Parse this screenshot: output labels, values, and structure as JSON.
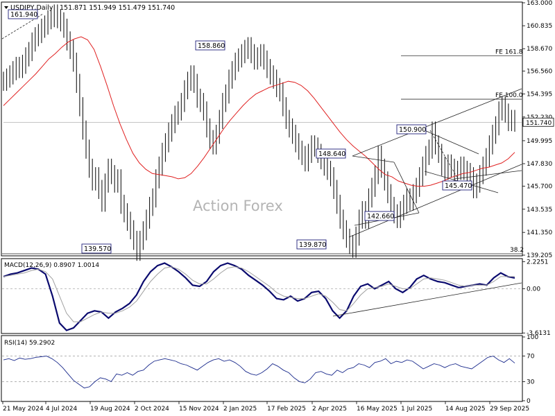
{
  "header": {
    "symbol": "USDJPY,Daily",
    "ohlc": "151.871 151.949 151.479 151.740"
  },
  "watermark": "Action Forex",
  "macd_title": "MACD(12,26,9) 0.8907 1.0014",
  "rsi_title": "RSI(14) 59.2902",
  "colors": {
    "price": "#1a1a1a",
    "ma": "#e02020",
    "macd": "#0a0a6e",
    "signal": "#a0a0a0",
    "label_border": "#1e1e7a",
    "rsi": "#1a2a8c"
  },
  "chart_data": [
    {
      "type": "line",
      "subtype": "price-bars",
      "ylim": [
        139.205,
        163.0
      ],
      "y_ticks": [
        "163.000",
        "160.835",
        "158.670",
        "156.560",
        "154.395",
        "152.230",
        "149.995",
        "147.830",
        "145.700",
        "143.535",
        "141.350",
        "139.205"
      ],
      "current_price": "151.740",
      "x_tick_labels": [
        "21 May 2024",
        "4 Jul 2024",
        "19 Aug 2024",
        "2 Oct 2024",
        "15 Nov 2024",
        "2 Jan 2025",
        "17 Feb 2025",
        "2 Apr 2025",
        "16 May 2025",
        "1 Jul 2025",
        "14 Aug 2025",
        "29 Sep 2025"
      ],
      "series": [
        {
          "role": "price",
          "values": [
            155.6,
            155.9,
            156.2,
            156.6,
            157.0,
            156.8,
            157.2,
            157.9,
            158.4,
            159.3,
            159.8,
            160.1,
            160.6,
            160.9,
            161.4,
            161.6,
            161.94,
            161.5,
            161.2,
            160.6,
            159.4,
            158.6,
            157.4,
            155.4,
            153.2,
            151.0,
            149.2,
            147.4,
            146.2,
            146.6,
            145.4,
            144.2,
            146.0,
            147.4,
            146.8,
            146.0,
            146.4,
            144.0,
            143.2,
            142.4,
            141.6,
            140.6,
            139.57,
            140.6,
            141.5,
            142.6,
            143.8,
            144.6,
            146.4,
            147.6,
            148.9,
            149.8,
            150.8,
            151.6,
            152.4,
            152.8,
            153.6,
            154.8,
            155.6,
            156.2,
            155.4,
            154.0,
            153.6,
            152.8,
            151.2,
            150.1,
            149.6,
            150.6,
            152.0,
            153.6,
            154.4,
            155.8,
            156.6,
            157.4,
            157.8,
            158.2,
            158.6,
            158.86,
            158.2,
            157.6,
            157.9,
            158.2,
            157.6,
            156.8,
            156.2,
            155.8,
            155.0,
            154.6,
            153.2,
            152.0,
            151.2,
            150.6,
            149.8,
            149.1,
            148.6,
            148.0,
            148.8,
            149.6,
            149.4,
            148.8,
            148.2,
            147.6,
            147.2,
            146.6,
            145.4,
            144.0,
            142.6,
            141.6,
            140.8,
            140.2,
            139.87,
            141.0,
            142.6,
            143.4,
            142.6,
            144.6,
            145.6,
            146.8,
            148.64,
            147.4,
            146.2,
            145.0,
            143.8,
            143.1,
            142.66,
            143.4,
            144.0,
            144.6,
            144.3,
            145.0,
            145.6,
            146.6,
            147.6,
            148.6,
            149.2,
            150.9,
            149.6,
            148.8,
            147.6,
            147.2,
            147.8,
            147.4,
            146.6,
            147.2,
            147.6,
            147.2,
            147.0,
            146.6,
            145.47,
            146.0,
            146.8,
            147.6,
            148.4,
            149.6,
            150.6,
            151.4,
            152.8,
            153.3,
            152.6,
            151.8,
            152.0,
            151.74
          ]
        },
        {
          "role": "moving-average",
          "values": [
            153.3,
            153.9,
            154.5,
            155.1,
            155.7,
            156.3,
            157.0,
            157.7,
            158.2,
            158.8,
            159.3,
            159.6,
            159.8,
            159.5,
            158.6,
            157.0,
            155.2,
            153.3,
            151.6,
            150.1,
            148.8,
            147.9,
            147.3,
            146.9,
            146.8,
            146.7,
            146.6,
            146.4,
            146.5,
            146.9,
            147.6,
            148.4,
            149.3,
            150.2,
            151.1,
            151.9,
            152.6,
            153.3,
            153.9,
            154.4,
            154.7,
            155.0,
            155.2,
            155.4,
            155.6,
            155.5,
            155.2,
            154.7,
            154.0,
            153.2,
            152.4,
            151.6,
            150.8,
            150.1,
            149.5,
            149.0,
            148.5,
            147.9,
            147.3,
            146.8,
            146.6,
            146.2,
            146.0,
            145.8,
            145.7,
            145.7,
            145.8,
            146.0,
            146.2,
            146.5,
            146.7,
            146.9,
            147.0,
            147.2,
            147.4,
            147.5,
            147.7,
            147.9,
            148.3,
            148.9
          ]
        }
      ],
      "annotations": [
        "161.940",
        "158.860",
        "148.640",
        "150.900",
        "145.470",
        "142.660",
        "139.570",
        "139.870",
        "FE 161.8",
        "FE 100.0",
        "38.2"
      ],
      "fib_levels": [
        {
          "label": "FE 161.8",
          "value": 157.99
        },
        {
          "label": "FE 100.0",
          "value": 153.91
        }
      ]
    },
    {
      "type": "line",
      "subtype": "macd",
      "title": "MACD(12,26,9) 0.8907 1.0014",
      "ylim": [
        -3.6,
        2.3
      ],
      "y_ticks": [
        "2.2251",
        "0.00",
        "-3.6131"
      ],
      "series": [
        {
          "role": "macd",
          "values": [
            1.0,
            1.2,
            1.3,
            1.5,
            1.7,
            1.6,
            1.2,
            -0.6,
            -2.8,
            -3.4,
            -3.2,
            -2.6,
            -2.0,
            -1.8,
            -1.9,
            -2.4,
            -1.9,
            -1.6,
            -1.2,
            -0.5,
            0.6,
            1.4,
            1.9,
            2.1,
            1.8,
            1.4,
            0.9,
            0.3,
            0.2,
            0.6,
            1.4,
            1.9,
            2.1,
            1.9,
            1.6,
            1.1,
            0.7,
            0.3,
            -0.2,
            -0.8,
            -0.9,
            -0.6,
            -1.0,
            -0.8,
            -0.3,
            -0.2,
            -0.8,
            -1.8,
            -2.4,
            -1.8,
            -0.6,
            0.2,
            0.4,
            0.0,
            0.3,
            0.6,
            0.0,
            -0.3,
            0.1,
            0.8,
            1.1,
            0.8,
            0.6,
            0.5,
            0.3,
            0.1,
            0.2,
            0.3,
            0.4,
            0.3,
            0.9,
            1.3,
            1.0,
            0.89
          ]
        },
        {
          "role": "signal",
          "values": [
            1.0,
            1.1,
            1.2,
            1.3,
            1.5,
            1.6,
            1.4,
            0.8,
            -0.6,
            -2.0,
            -2.7,
            -2.7,
            -2.4,
            -2.1,
            -1.9,
            -2.0,
            -2.0,
            -1.8,
            -1.5,
            -1.0,
            -0.2,
            0.6,
            1.2,
            1.7,
            1.8,
            1.6,
            1.2,
            0.7,
            0.4,
            0.4,
            0.8,
            1.3,
            1.7,
            1.8,
            1.7,
            1.4,
            1.0,
            0.6,
            0.2,
            -0.3,
            -0.6,
            -0.7,
            -0.8,
            -0.8,
            -0.6,
            -0.4,
            -0.6,
            -1.1,
            -1.7,
            -1.8,
            -1.2,
            -0.5,
            0.0,
            0.1,
            0.2,
            0.4,
            0.2,
            0.0,
            0.0,
            0.4,
            0.8,
            0.9,
            0.8,
            0.7,
            0.5,
            0.3,
            0.2,
            0.3,
            0.3,
            0.3,
            0.6,
            1.0,
            1.0,
            1.0
          ]
        }
      ]
    },
    {
      "type": "line",
      "subtype": "rsi",
      "title": "RSI(14) 59.2902",
      "ylim": [
        0,
        100
      ],
      "y_ticks": [
        "100",
        "70",
        "30",
        "0"
      ],
      "levels": [
        70,
        30
      ],
      "series": [
        {
          "role": "rsi",
          "values": [
            64,
            66,
            63,
            67,
            65,
            66,
            68,
            69,
            70,
            66,
            60,
            52,
            42,
            32,
            26,
            20,
            22,
            30,
            36,
            34,
            30,
            42,
            40,
            44,
            40,
            46,
            48,
            56,
            62,
            64,
            66,
            64,
            62,
            58,
            56,
            52,
            48,
            54,
            60,
            64,
            66,
            62,
            64,
            60,
            54,
            46,
            42,
            40,
            44,
            50,
            58,
            54,
            48,
            44,
            36,
            30,
            28,
            34,
            44,
            46,
            42,
            40,
            48,
            44,
            50,
            52,
            58,
            56,
            52,
            60,
            62,
            66,
            58,
            62,
            60,
            64,
            62,
            56,
            50,
            54,
            58,
            56,
            52,
            56,
            58,
            54,
            52,
            50,
            56,
            62,
            68,
            70,
            64,
            60,
            66,
            59
          ]
        }
      ]
    }
  ]
}
